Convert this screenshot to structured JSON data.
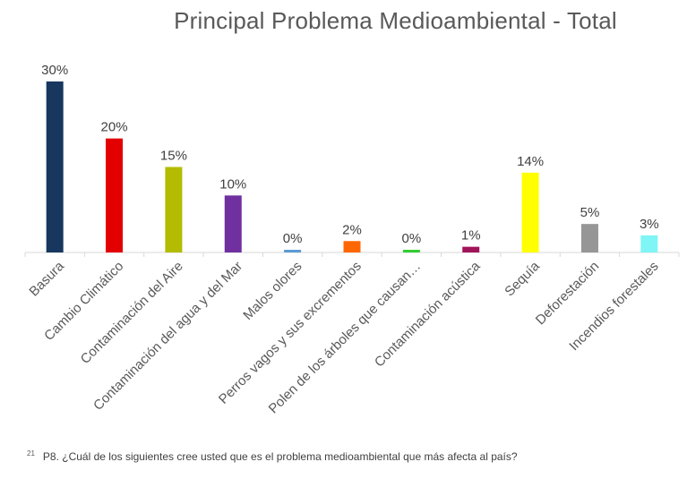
{
  "title": "Principal Problema Medioambiental - Total",
  "footnote": {
    "number": "21",
    "text": "P8. ¿Cuál de los siguientes cree usted que es el problema medioambiental que más afecta al país?"
  },
  "chart_data": {
    "type": "bar",
    "title": "Principal Problema Medioambiental - Total",
    "xlabel": "",
    "ylabel": "",
    "categories": [
      "Basura",
      "Cambio Climático",
      "Contaminación del Aire",
      "Contaminación del agua y del Mar",
      "Malos olores",
      "Perros vagos y sus excrementos",
      "Polen de los árboles que causan…",
      "Contaminación acústica",
      "Sequía",
      "Deforestación",
      "Incendios forestales"
    ],
    "values": [
      30,
      20,
      15,
      10,
      0,
      2,
      0,
      1,
      14,
      5,
      3
    ],
    "value_labels": [
      "30%",
      "20%",
      "15%",
      "10%",
      "0%",
      "2%",
      "0%",
      "1%",
      "14%",
      "5%",
      "3%"
    ],
    "colors": [
      "#17375e",
      "#e30000",
      "#b3bc00",
      "#7030a0",
      "#5b9bd5",
      "#ff6600",
      "#33cc33",
      "#a1145a",
      "#ffff00",
      "#969696",
      "#7ff5f5"
    ],
    "unit": "%",
    "grid": false,
    "legend": "none"
  }
}
